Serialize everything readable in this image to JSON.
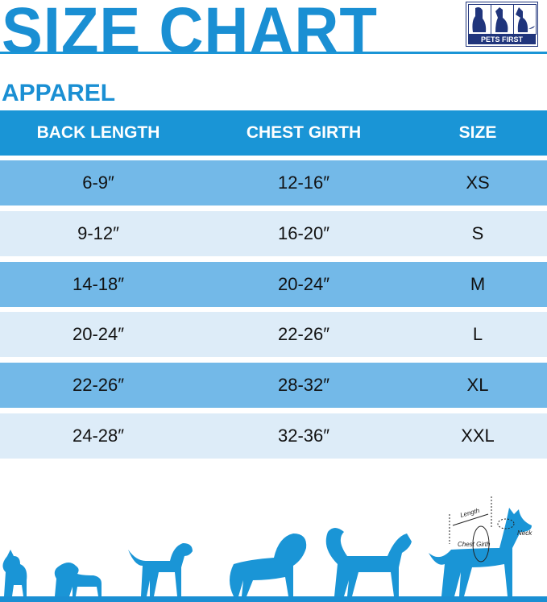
{
  "title": "SIZE CHART",
  "logo": {
    "text": "PETS FIRST"
  },
  "section": "APPAREL",
  "table": {
    "headers": [
      "BACK LENGTH",
      "CHEST GIRTH",
      "SIZE"
    ],
    "rows": [
      [
        "6-9″",
        "12-16″",
        "XS"
      ],
      [
        "9-12″",
        "16-20″",
        "S"
      ],
      [
        "14-18″",
        "20-24″",
        "M"
      ],
      [
        "20-24″",
        "22-26″",
        "L"
      ],
      [
        "22-26″",
        "28-32″",
        "XL"
      ],
      [
        "24-28″",
        "32-36″",
        "XXL"
      ]
    ]
  },
  "diagram": {
    "length": "Length",
    "chest": "Chest Girth",
    "neck": "Neck"
  },
  "colors": {
    "brand": "#1a8fd3",
    "header": "#1a95d6",
    "row_dark": "#73b9e8",
    "row_light": "#ddecf8",
    "logo": "#20357c"
  }
}
